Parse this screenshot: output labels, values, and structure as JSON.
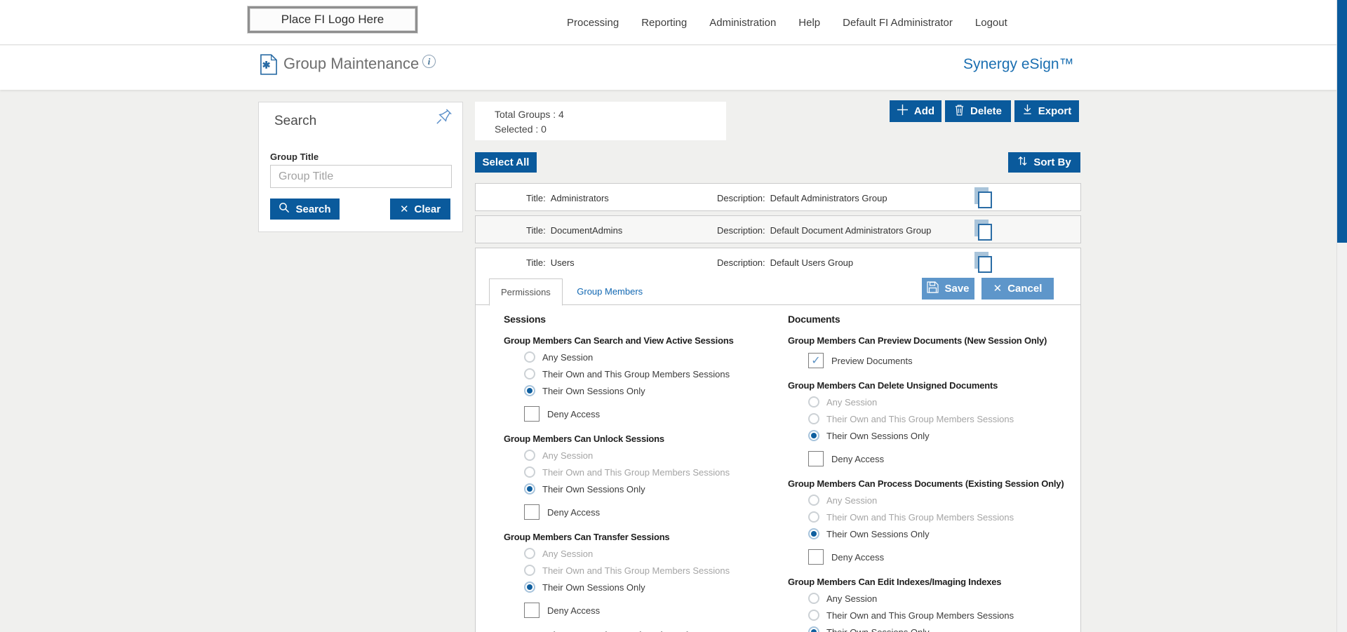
{
  "topnav": {
    "logo_text": "Place FI Logo Here",
    "items": [
      "Processing",
      "Reporting",
      "Administration",
      "Help",
      "Default FI Administrator",
      "Logout"
    ]
  },
  "header": {
    "title": "Group Maintenance",
    "info_glyph": "i",
    "brand": "Synergy eSign™"
  },
  "search_panel": {
    "title": "Search",
    "field_label": "Group Title",
    "field_placeholder": "Group Title",
    "field_value": "",
    "search_label": "Search",
    "clear_label": "Clear"
  },
  "toolbar": {
    "total_groups_label": "Total Groups : 4",
    "selected_label": "Selected : 0",
    "add_label": "Add",
    "delete_label": "Delete",
    "export_label": "Export",
    "select_all_label": "Select All",
    "sort_by_label": "Sort By"
  },
  "row_labels": {
    "title": "Title:",
    "description": "Description:"
  },
  "groups": [
    {
      "title": "Administrators",
      "description": "Default Administrators Group",
      "selected": false,
      "expanded": false
    },
    {
      "title": "DocumentAdmins",
      "description": "Default Document Administrators Group",
      "selected": false,
      "expanded": false
    },
    {
      "title": "Users",
      "description": "Default Users Group",
      "selected": false,
      "expanded": true
    }
  ],
  "detail": {
    "tabs": [
      {
        "label": "Permissions",
        "active": true
      },
      {
        "label": "Group Members",
        "active": false
      }
    ],
    "save_label": "Save",
    "cancel_label": "Cancel",
    "columns": [
      {
        "heading": "Sessions",
        "groups": [
          {
            "title": "Group Members Can Search and View Active Sessions",
            "options": [
              {
                "type": "radio",
                "label": "Any Session",
                "checked": false,
                "disabled": false
              },
              {
                "type": "radio",
                "label": "Their Own and This Group Members Sessions",
                "checked": false,
                "disabled": false
              },
              {
                "type": "radio",
                "label": "Their Own Sessions Only",
                "checked": true,
                "disabled": false
              },
              {
                "type": "checkbox",
                "label": "Deny Access",
                "checked": false,
                "disabled": false
              }
            ]
          },
          {
            "title": "Group Members Can Unlock Sessions",
            "options": [
              {
                "type": "radio",
                "label": "Any Session",
                "checked": false,
                "disabled": true
              },
              {
                "type": "radio",
                "label": "Their Own and This Group Members Sessions",
                "checked": false,
                "disabled": true
              },
              {
                "type": "radio",
                "label": "Their Own Sessions Only",
                "checked": true,
                "disabled": false
              },
              {
                "type": "checkbox",
                "label": "Deny Access",
                "checked": false,
                "disabled": false
              }
            ]
          },
          {
            "title": "Group Members Can Transfer Sessions",
            "options": [
              {
                "type": "radio",
                "label": "Any Session",
                "checked": false,
                "disabled": true
              },
              {
                "type": "radio",
                "label": "Their Own and This Group Members Sessions",
                "checked": false,
                "disabled": true
              },
              {
                "type": "radio",
                "label": "Their Own Sessions Only",
                "checked": true,
                "disabled": false
              },
              {
                "type": "checkbox",
                "label": "Deny Access",
                "checked": false,
                "disabled": false
              }
            ]
          },
          {
            "title": "Group Members Can Delete Unsigned Sessions",
            "options": []
          }
        ]
      },
      {
        "heading": "Documents",
        "groups": [
          {
            "title": "Group Members Can Preview Documents (New Session Only)",
            "options": [
              {
                "type": "checkbox",
                "label": "Preview Documents",
                "checked": true,
                "disabled": false
              }
            ]
          },
          {
            "title": "Group Members Can Delete Unsigned Documents",
            "options": [
              {
                "type": "radio",
                "label": "Any Session",
                "checked": false,
                "disabled": true
              },
              {
                "type": "radio",
                "label": "Their Own and This Group Members Sessions",
                "checked": false,
                "disabled": true
              },
              {
                "type": "radio",
                "label": "Their Own Sessions Only",
                "checked": true,
                "disabled": false
              },
              {
                "type": "checkbox",
                "label": "Deny Access",
                "checked": false,
                "disabled": false
              }
            ]
          },
          {
            "title": "Group Members Can Process Documents (Existing Session Only)",
            "options": [
              {
                "type": "radio",
                "label": "Any Session",
                "checked": false,
                "disabled": true
              },
              {
                "type": "radio",
                "label": "Their Own and This Group Members Sessions",
                "checked": false,
                "disabled": true
              },
              {
                "type": "radio",
                "label": "Their Own Sessions Only",
                "checked": true,
                "disabled": false
              },
              {
                "type": "checkbox",
                "label": "Deny Access",
                "checked": false,
                "disabled": false
              }
            ]
          },
          {
            "title": "Group Members Can Edit Indexes/Imaging Indexes",
            "options": [
              {
                "type": "radio",
                "label": "Any Session",
                "checked": false,
                "disabled": false
              },
              {
                "type": "radio",
                "label": "Their Own and This Group Members Sessions",
                "checked": false,
                "disabled": false
              },
              {
                "type": "radio",
                "label": "Their Own Sessions Only",
                "checked": true,
                "disabled": false
              }
            ]
          }
        ]
      }
    ]
  },
  "colors": {
    "primary_button": "#0a5a9c",
    "secondary_button": "#5e96ca",
    "brand_blue": "#1b6fb1",
    "link_blue": "#1268b3",
    "radio_selected": "#0f5f9f",
    "page_background": "#f0f0ee",
    "scrollbar_thumb": "#0a5a9d"
  }
}
